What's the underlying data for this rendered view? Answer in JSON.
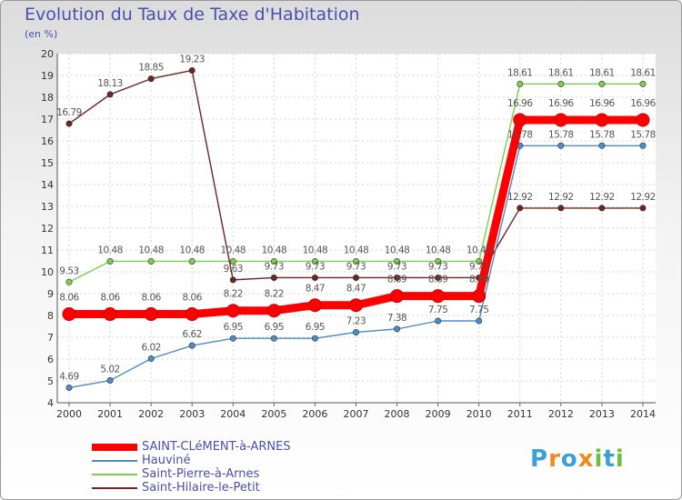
{
  "title": "Evolution du Taux de Taxe d'Habitation",
  "subtitle": "(en %)",
  "logo": {
    "letters": [
      "P",
      "r",
      "o",
      "x",
      "i",
      "t",
      "i"
    ],
    "colors": [
      "#3aa0d8",
      "#f08a1c",
      "#3aa0d8",
      "#f08a1c",
      "#6cbf3c",
      "#3aa0d8",
      "#6cbf3c"
    ]
  },
  "chart_data": {
    "type": "line",
    "x": [
      "2000",
      "2001",
      "2002",
      "2003",
      "2004",
      "2005",
      "2006",
      "2007",
      "2008",
      "2009",
      "2010",
      "2011",
      "2012",
      "2013",
      "2014"
    ],
    "ylim": [
      4,
      20
    ],
    "yticks": [
      "4",
      "5",
      "6",
      "7",
      "8",
      "9",
      "10",
      "11",
      "12",
      "13",
      "14",
      "15",
      "16",
      "17",
      "18",
      "19",
      "20"
    ],
    "grid": true,
    "legend_position": "bottom-left",
    "series": [
      {
        "name": "SAINT-CLéMENT-à-ARNES",
        "color": "#ff0000",
        "emphasis": true,
        "values": [
          8.06,
          8.06,
          8.06,
          8.06,
          8.22,
          8.22,
          8.47,
          8.47,
          8.89,
          8.89,
          8.89,
          16.96,
          16.96,
          16.96,
          16.96
        ],
        "labels": [
          "8.06",
          "8.06",
          "8.06",
          "8.06",
          "8.22",
          "8.22",
          "8.47",
          "8.47",
          "8.89",
          "8.89",
          "8.89",
          "16.96",
          "16.96",
          "16.96",
          "16.96"
        ]
      },
      {
        "name": "Hauviné",
        "color": "#4d8cc8",
        "emphasis": false,
        "values": [
          4.69,
          5.02,
          6.02,
          6.62,
          6.95,
          6.95,
          6.95,
          7.23,
          7.38,
          7.75,
          7.75,
          15.78,
          15.78,
          15.78,
          15.78
        ],
        "labels": [
          "4.69",
          "5.02",
          "6.02",
          "6.62",
          "6.95",
          "6.95",
          "6.95",
          "7.23",
          "7.38",
          "7.75",
          "7.75",
          "15.78",
          "15.78",
          "15.78",
          "15.78"
        ]
      },
      {
        "name": "Saint-Pierre-à-Arnes",
        "color": "#7ccf4a",
        "emphasis": false,
        "values": [
          9.53,
          10.48,
          10.48,
          10.48,
          10.48,
          10.48,
          10.48,
          10.48,
          10.48,
          10.48,
          10.48,
          18.61,
          18.61,
          18.61,
          18.61
        ],
        "labels": [
          "9.53",
          "10.48",
          "10.48",
          "10.48",
          "10.48",
          "10.48",
          "10.48",
          "10.48",
          "10.48",
          "10.48",
          "10.48",
          "18.61",
          "18.61",
          "18.61",
          "18.61"
        ]
      },
      {
        "name": "Saint-Hilaire-le-Petit",
        "color": "#6e2424",
        "emphasis": false,
        "values": [
          16.79,
          18.13,
          18.85,
          19.23,
          9.63,
          9.73,
          9.73,
          9.73,
          9.73,
          9.73,
          9.73,
          12.92,
          12.92,
          12.92,
          12.92
        ],
        "labels": [
          "16.79",
          "18.13",
          "18.85",
          "19.23",
          "9.63",
          "9.73",
          "9.73",
          "9.73",
          "9.73",
          "9.73",
          "9.73",
          "12.92",
          "12.92",
          "12.92",
          "12.92"
        ]
      }
    ]
  }
}
